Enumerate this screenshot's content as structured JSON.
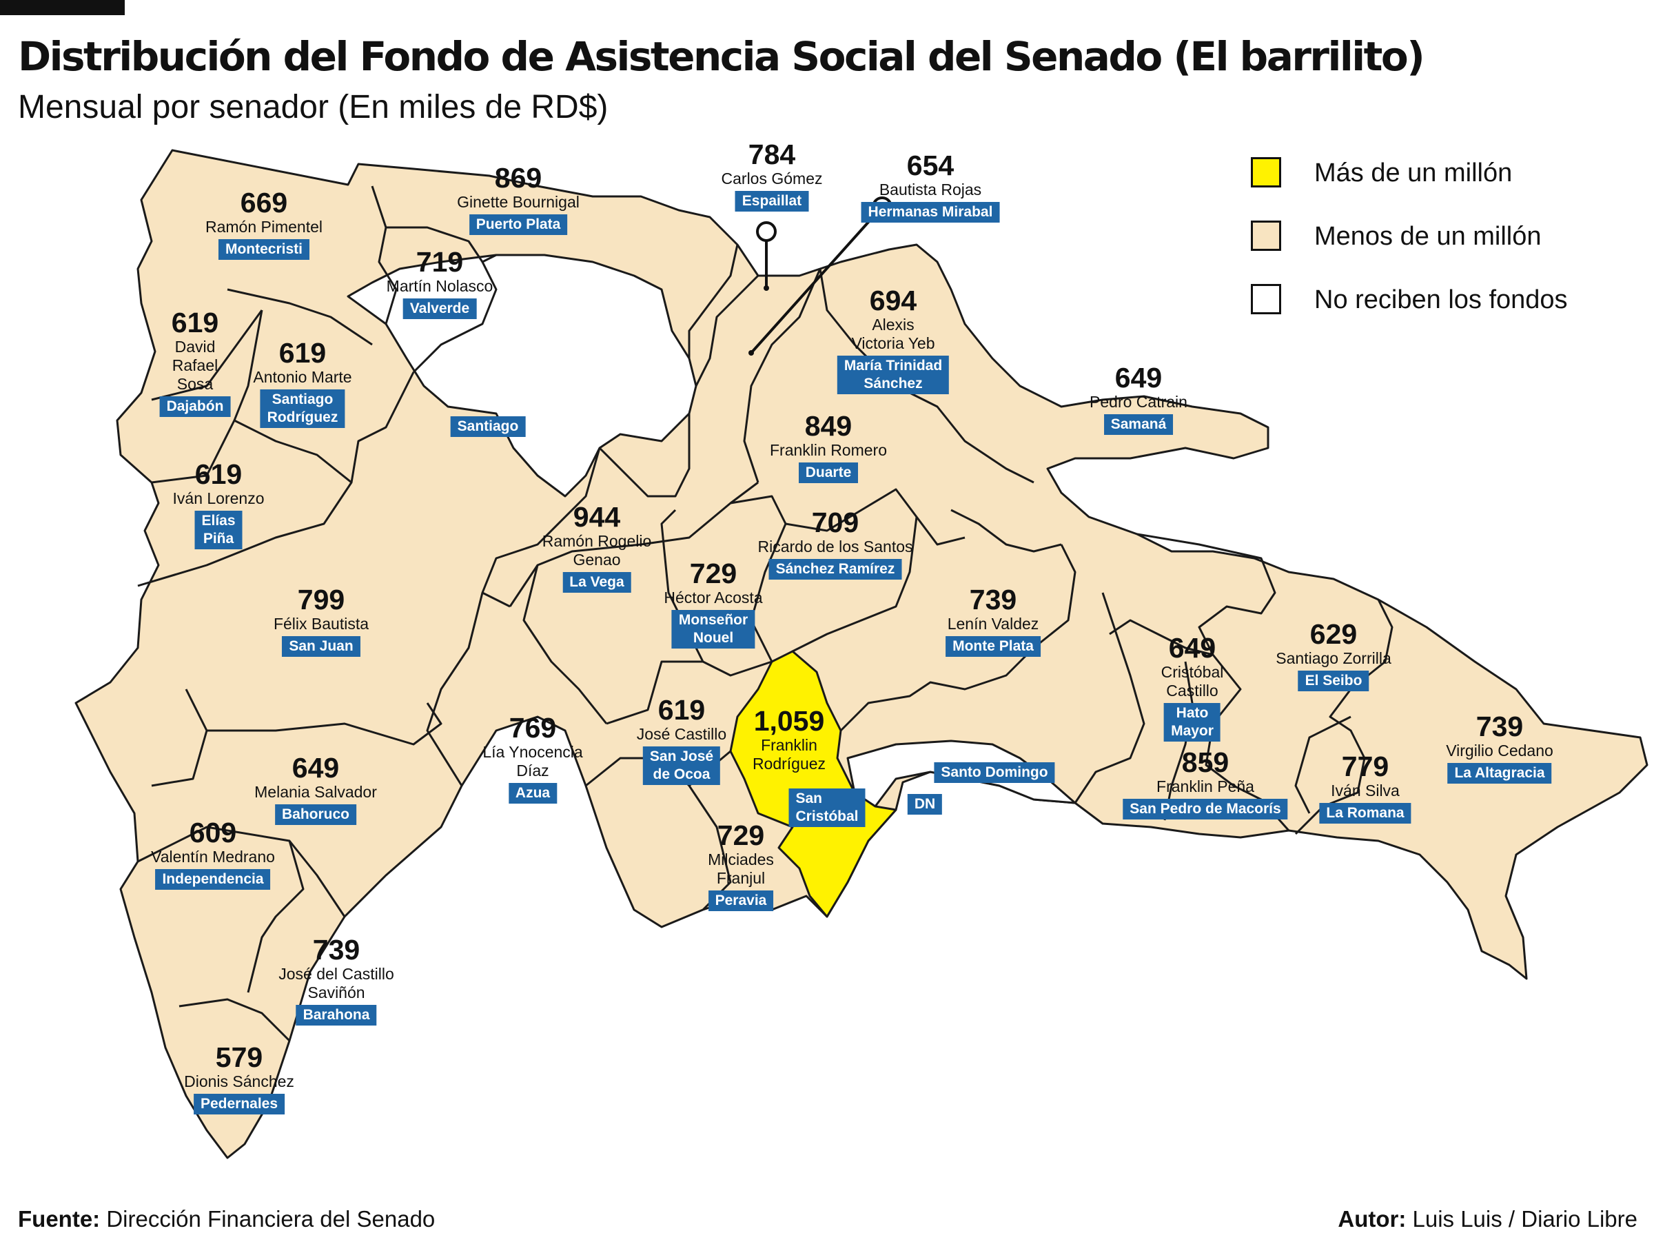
{
  "title": "Distribución del Fondo de Asistencia Social del Senado (El barrilito)",
  "subtitle": "Mensual por senador (En miles de RD$)",
  "colors": {
    "high": "#fff200",
    "low": "#f8e4c1",
    "none": "#ffffff",
    "badge": "#1f66a6"
  },
  "legend": [
    {
      "label": "Más de un millón",
      "color": "#fff200"
    },
    {
      "label": "Menos de un millón",
      "color": "#f8e4c1"
    },
    {
      "label": "No reciben los fondos",
      "color": "#ffffff"
    }
  ],
  "provinces": [
    {
      "id": "montecristi",
      "value": "669",
      "senator": "Ramón Pimentel",
      "province": "Montecristi"
    },
    {
      "id": "puerto-plata",
      "value": "869",
      "senator": "Ginette Bournigal",
      "province": "Puerto Plata"
    },
    {
      "id": "espaillat",
      "value": "784",
      "senator": "Carlos Gómez",
      "province": "Espaillat"
    },
    {
      "id": "hermanas-mirabal",
      "value": "654",
      "senator": "Bautista Rojas",
      "province": "Hermanas Mirabal"
    },
    {
      "id": "valverde",
      "value": "719",
      "senator": "Martín Nolasco",
      "province": "Valverde"
    },
    {
      "id": "dajabon",
      "value": "619",
      "senator": "David\nRafael\nSosa",
      "province": "Dajabón"
    },
    {
      "id": "santiago-rodriguez",
      "value": "619",
      "senator": "Antonio Marte",
      "province": "Santiago\nRodríguez"
    },
    {
      "id": "maria-trinidad-sanchez",
      "value": "694",
      "senator": "Alexis\nVictoria Yeb",
      "province": "María Trinidad\nSánchez"
    },
    {
      "id": "samana",
      "value": "649",
      "senator": "Pedro Catrain",
      "province": "Samaná"
    },
    {
      "id": "duarte",
      "value": "849",
      "senator": "Franklin Romero",
      "province": "Duarte"
    },
    {
      "id": "elias-pina",
      "value": "619",
      "senator": "Iván Lorenzo",
      "province": "Elías\nPiña"
    },
    {
      "id": "la-vega",
      "value": "944",
      "senator": "Ramón Rogelio\nGenao",
      "province": "La Vega"
    },
    {
      "id": "sanchez-ramirez",
      "value": "709",
      "senator": "Ricardo de los Santos",
      "province": "Sánchez Ramírez"
    },
    {
      "id": "monsenor-nouel",
      "value": "729",
      "senator": "Héctor Acosta",
      "province": "Monseñor\nNouel"
    },
    {
      "id": "san-juan",
      "value": "799",
      "senator": "Félix Bautista",
      "province": "San Juan"
    },
    {
      "id": "monte-plata",
      "value": "739",
      "senator": "Lenín Valdez",
      "province": "Monte Plata"
    },
    {
      "id": "el-seibo",
      "value": "629",
      "senator": "Santiago Zorrilla",
      "province": "El Seibo"
    },
    {
      "id": "hato-mayor",
      "value": "649",
      "senator": "Cristóbal\nCastillo",
      "province": "Hato\nMayor"
    },
    {
      "id": "azua",
      "value": "769",
      "senator": "Lía Ynocencia\nDíaz",
      "province": "Azua"
    },
    {
      "id": "san-jose-de-ocoa",
      "value": "619",
      "senator": "José Castillo",
      "province": "San José\nde Ocoa"
    },
    {
      "id": "san-cristobal",
      "value": "1,059",
      "senator": "Franklin\nRodríguez",
      "province": ""
    },
    {
      "id": "la-altagracia",
      "value": "739",
      "senator": "Virgilio Cedano",
      "province": "La Altagracia"
    },
    {
      "id": "san-pedro-de-macoris",
      "value": "859",
      "senator": "Franklin Peña",
      "province": "San Pedro de Macorís"
    },
    {
      "id": "la-romana",
      "value": "779",
      "senator": "Iván Silva",
      "province": "La Romana"
    },
    {
      "id": "bahoruco",
      "value": "649",
      "senator": "Melania Salvador",
      "province": "Bahoruco"
    },
    {
      "id": "independencia",
      "value": "609",
      "senator": "Valentín Medrano",
      "province": "Independencia"
    },
    {
      "id": "peravia",
      "value": "729",
      "senator": "Milciades\nFranjul",
      "province": "Peravia"
    },
    {
      "id": "barahona",
      "value": "739",
      "senator": "José del Castillo\nSaviñón",
      "province": "Barahona"
    },
    {
      "id": "pedernales",
      "value": "579",
      "senator": "Dionis Sánchez",
      "province": "Pedernales"
    }
  ],
  "no_funds": [
    {
      "id": "santiago",
      "province": "Santiago"
    },
    {
      "id": "santo-domingo",
      "province": "Santo Domingo"
    },
    {
      "id": "dn",
      "province": "DN"
    },
    {
      "id": "san-cristobal-badge",
      "province": "San\nCristóbal"
    }
  ],
  "footer": {
    "source_label": "Fuente:",
    "source": "Dirección Financiera del Senado",
    "author_label": "Autor:",
    "author": "Luis Luis / Diario Libre"
  }
}
